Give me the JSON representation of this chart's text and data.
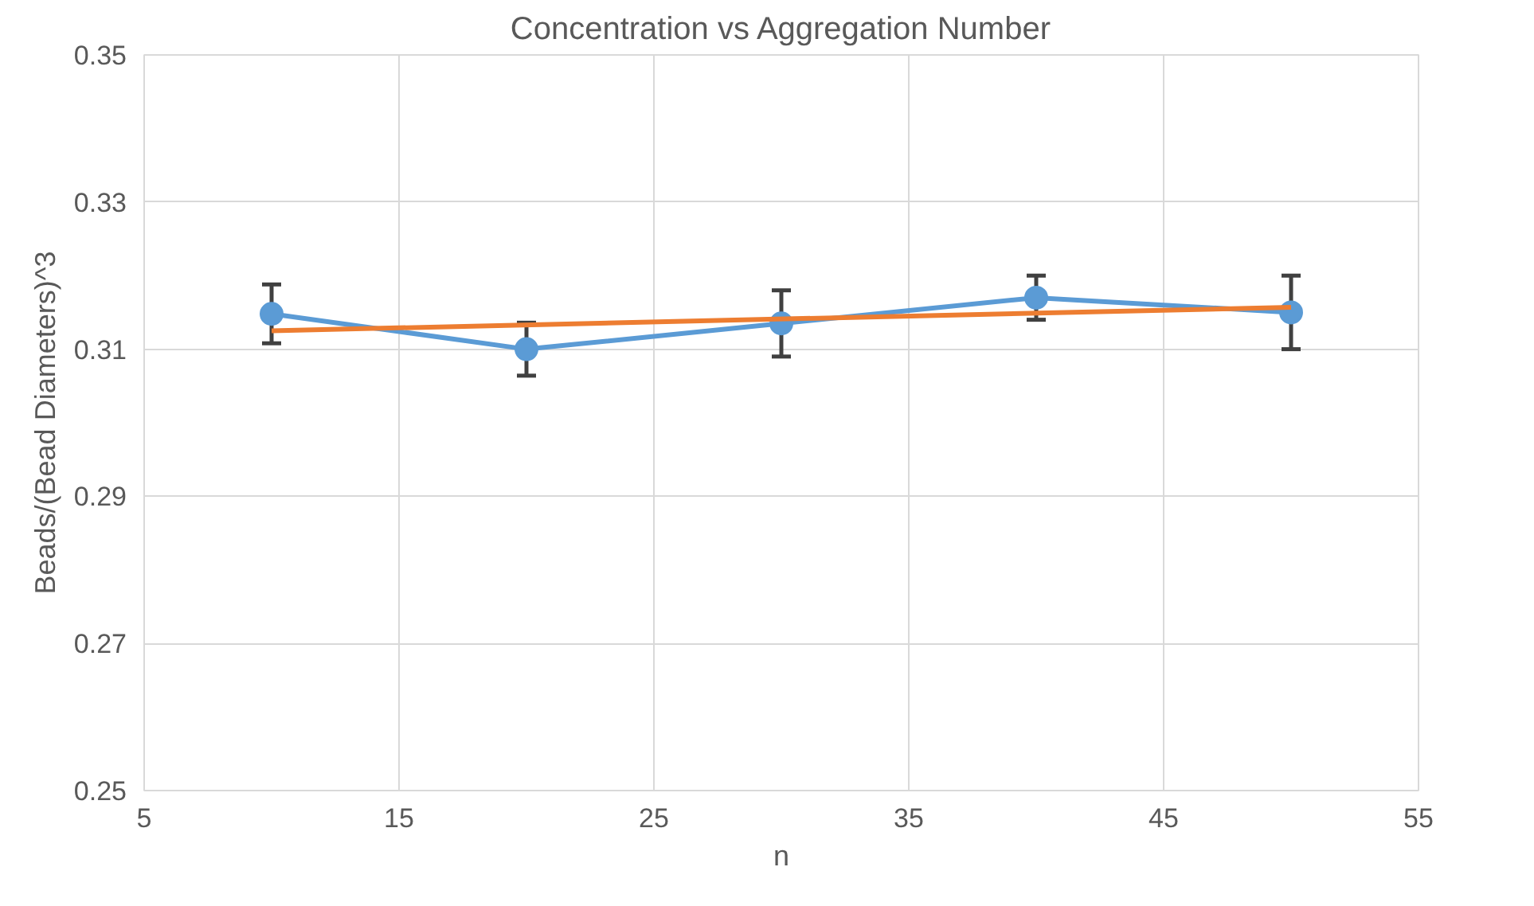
{
  "chart_data": {
    "type": "line",
    "title": "Concentration vs Aggregation Number",
    "xlabel": "n",
    "ylabel": "Beads/(Bead Diameters)^3",
    "x": [
      10,
      20,
      30,
      40,
      50
    ],
    "series": [
      {
        "color": "#5b9bd5",
        "values": [
          0.3148,
          0.31,
          0.3135,
          0.317,
          0.315
        ],
        "errors": [
          0.004,
          0.0036,
          0.0045,
          0.003,
          0.005
        ],
        "marker": "circle"
      },
      {
        "type": "line",
        "color": "#ed7d31",
        "x": [
          10,
          50
        ],
        "values": [
          0.3125,
          0.3157
        ],
        "marker": "none"
      }
    ],
    "xlim": [
      5,
      55
    ],
    "xticks": [
      5,
      15,
      25,
      35,
      45,
      55
    ],
    "ylim": [
      0.25,
      0.35
    ],
    "yticks": [
      0.25,
      0.27,
      0.29,
      0.31,
      0.33,
      0.35
    ],
    "grid": true
  }
}
